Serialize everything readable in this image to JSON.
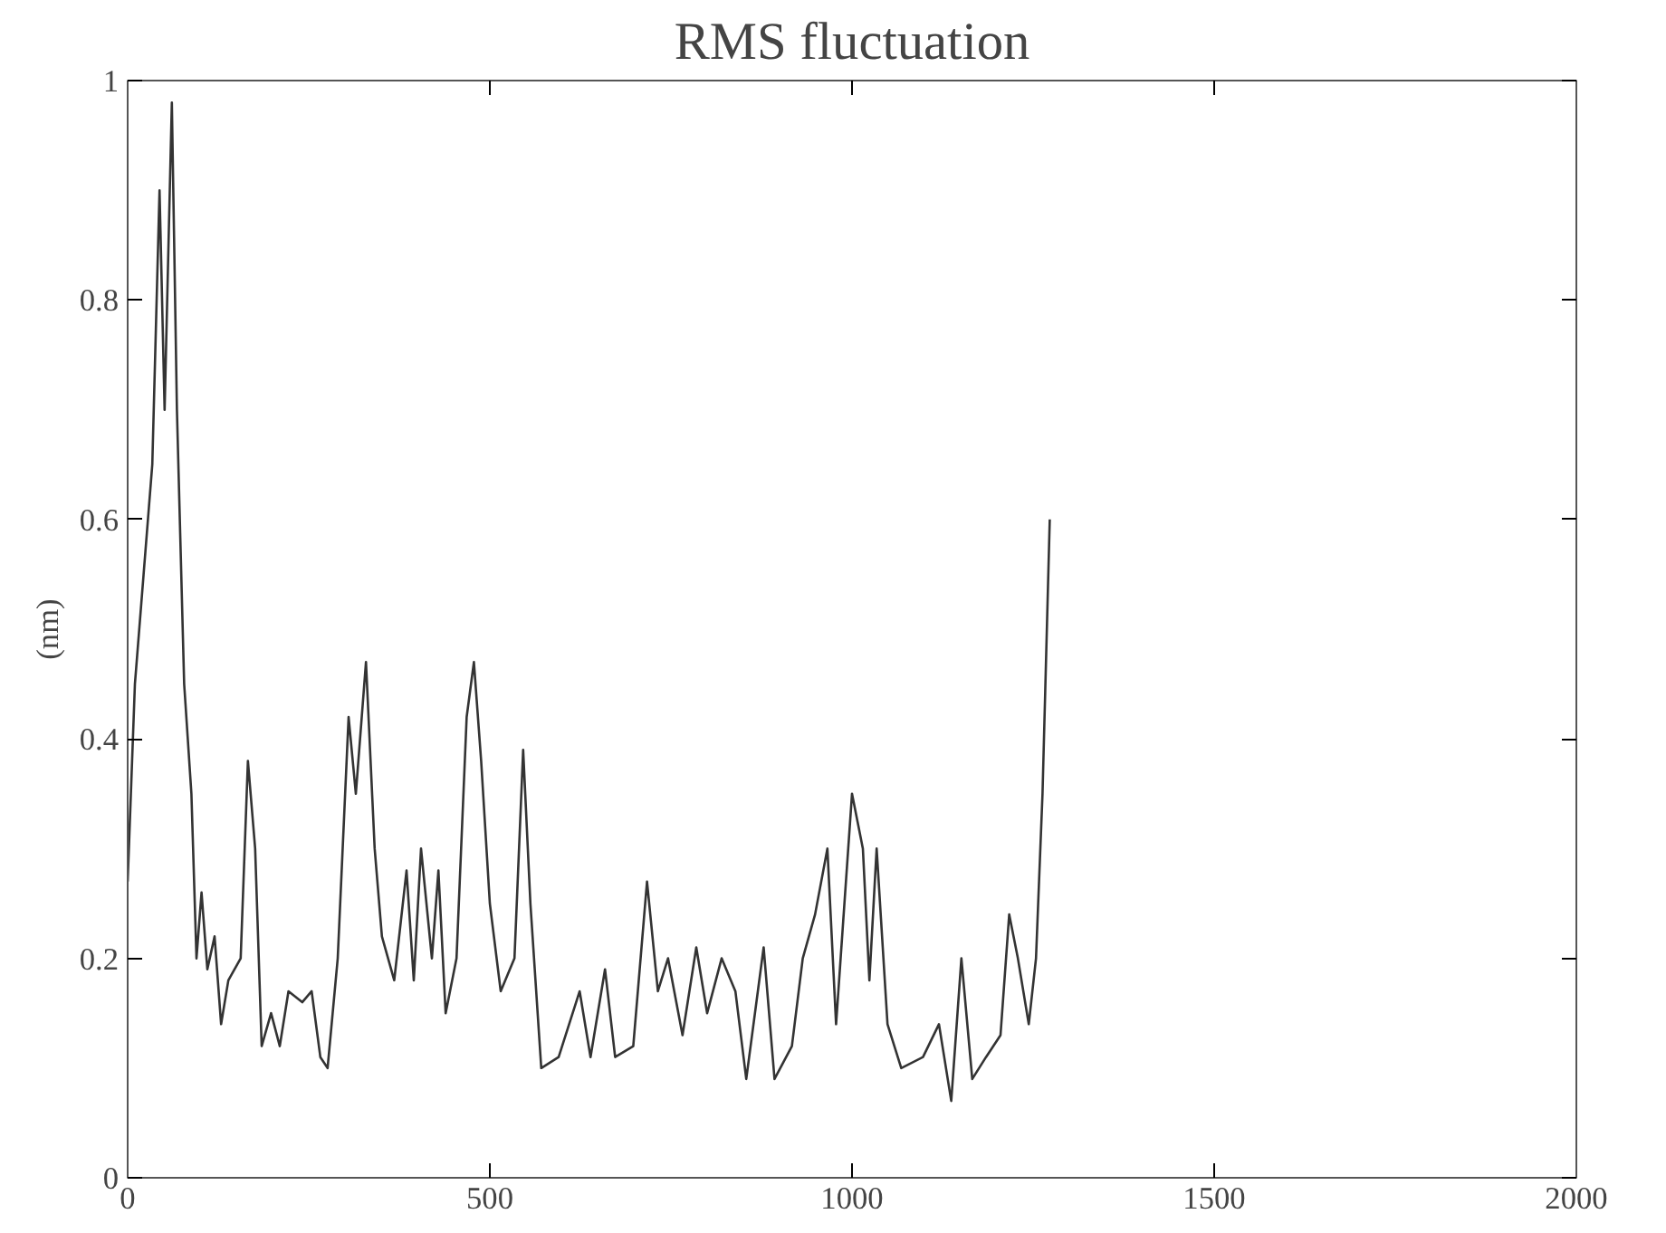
{
  "chart_data": {
    "type": "line",
    "title": "RMS fluctuation",
    "ylabel": "(nm)",
    "x": [
      0,
      10,
      22,
      34,
      44,
      51,
      61,
      68,
      78,
      88,
      95,
      102,
      110,
      120,
      129,
      139,
      156,
      166,
      176,
      185,
      198,
      210,
      222,
      241,
      254,
      266,
      276,
      290,
      305,
      315,
      329,
      341,
      351,
      368,
      385,
      395,
      405,
      420,
      429,
      439,
      454,
      468,
      478,
      488,
      500,
      515,
      534,
      546,
      556,
      571,
      595,
      624,
      639,
      659,
      673,
      698,
      717,
      732,
      746,
      766,
      785,
      800,
      820,
      839,
      854,
      878,
      893,
      917,
      932,
      949,
      966,
      978,
      1000,
      1015,
      1024,
      1034,
      1049,
      1068,
      1098,
      1120,
      1137,
      1151,
      1166,
      1185,
      1205,
      1217,
      1229,
      1244,
      1254,
      1263,
      1273
    ],
    "series": [
      {
        "color": "#333333",
        "values": [
          0.27,
          0.45,
          0.55,
          0.65,
          0.9,
          0.7,
          0.98,
          0.7,
          0.45,
          0.35,
          0.2,
          0.26,
          0.19,
          0.22,
          0.14,
          0.18,
          0.2,
          0.38,
          0.3,
          0.12,
          0.15,
          0.12,
          0.17,
          0.16,
          0.17,
          0.11,
          0.1,
          0.2,
          0.42,
          0.35,
          0.47,
          0.3,
          0.22,
          0.18,
          0.28,
          0.18,
          0.3,
          0.2,
          0.28,
          0.15,
          0.2,
          0.42,
          0.47,
          0.38,
          0.25,
          0.17,
          0.2,
          0.39,
          0.25,
          0.1,
          0.11,
          0.17,
          0.11,
          0.19,
          0.11,
          0.12,
          0.27,
          0.17,
          0.2,
          0.13,
          0.21,
          0.15,
          0.2,
          0.17,
          0.09,
          0.21,
          0.09,
          0.12,
          0.2,
          0.24,
          0.3,
          0.14,
          0.35,
          0.3,
          0.18,
          0.3,
          0.14,
          0.1,
          0.11,
          0.14,
          0.07,
          0.2,
          0.09,
          0.11,
          0.13,
          0.24,
          0.2,
          0.14,
          0.2,
          0.35,
          0.6
        ]
      }
    ],
    "xlim": [
      0,
      2000
    ],
    "xticks": [
      0,
      500,
      1000,
      1500,
      2000
    ],
    "ylim": [
      0,
      1
    ],
    "yticks": [
      0,
      0.2,
      0.4,
      0.6,
      0.8,
      1
    ],
    "grid": false,
    "marker": "none",
    "line_style": "solid"
  }
}
